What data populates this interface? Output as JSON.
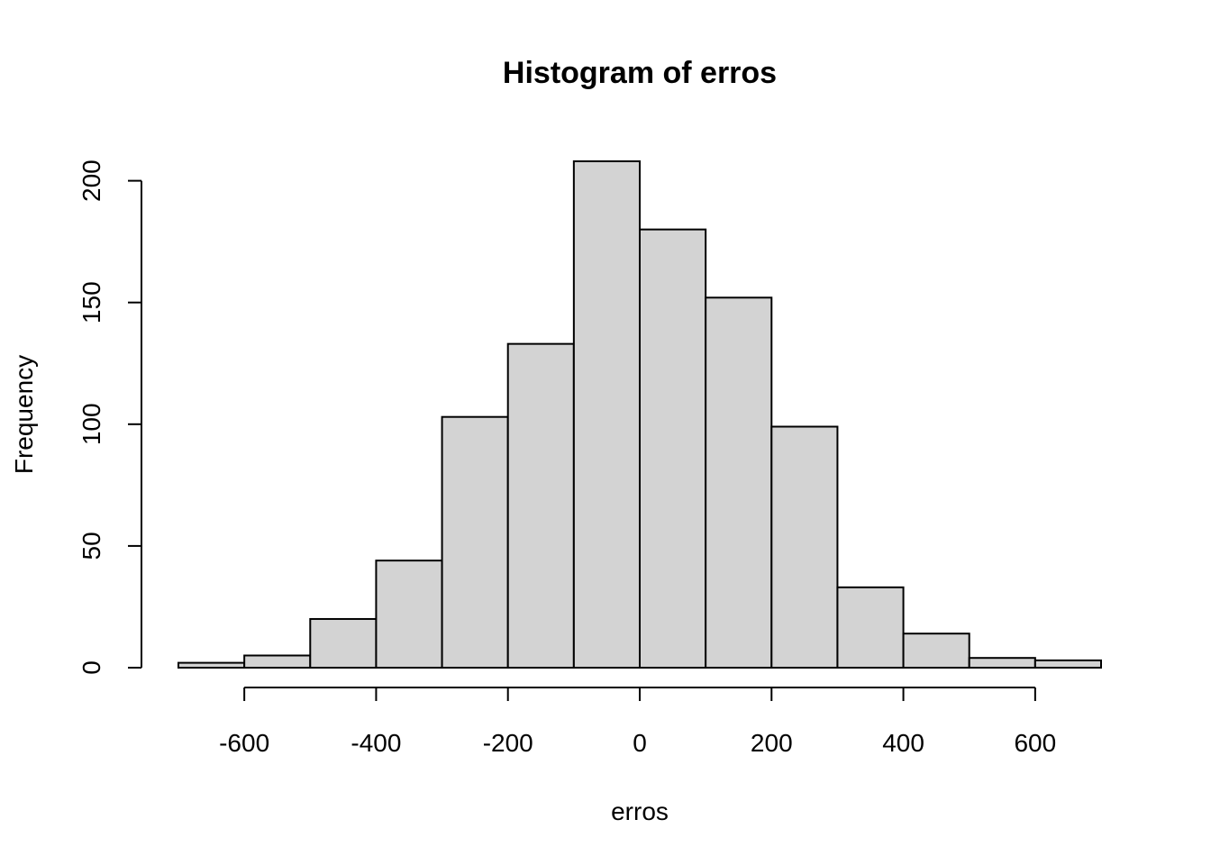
{
  "chart_data": {
    "type": "bar",
    "title": "Histogram of erros",
    "xlabel": "erros",
    "ylabel": "Frequency",
    "bin_edges": [
      -700,
      -600,
      -500,
      -400,
      -300,
      -200,
      -100,
      0,
      100,
      200,
      300,
      400,
      500,
      600,
      700
    ],
    "values": [
      2,
      5,
      20,
      44,
      103,
      133,
      208,
      180,
      152,
      99,
      33,
      14,
      4,
      3
    ],
    "xlim": [
      -700,
      700
    ],
    "ylim": [
      0,
      208
    ],
    "x_ticks": [
      -600,
      -400,
      -200,
      0,
      200,
      400,
      600
    ],
    "x_tick_labels": [
      "-600",
      "-400",
      "-200",
      "0",
      "200",
      "400",
      "600"
    ],
    "y_ticks": [
      0,
      50,
      100,
      150,
      200
    ],
    "y_tick_labels": [
      "0",
      "50",
      "100",
      "150",
      "200"
    ],
    "bar_color": "#d3d3d3",
    "grid": false,
    "legend": "none"
  }
}
